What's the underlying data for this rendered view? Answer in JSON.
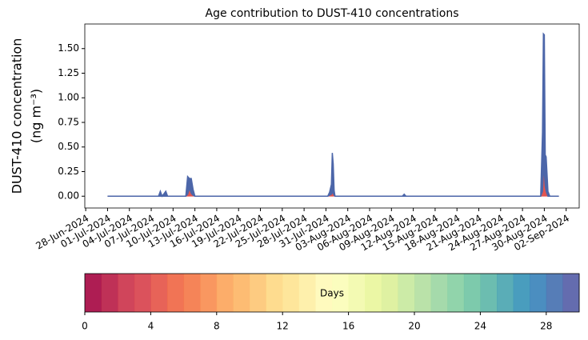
{
  "chart_data": {
    "type": "stacked-area",
    "title": "Age contribution to DUST-410 concentrations",
    "ylabel": [
      "DUST-410 concentration",
      "(ng m⁻³)"
    ],
    "x": [
      "2024-07-01T00:00",
      "2024-07-08T00:00",
      "2024-07-08T06:00",
      "2024-07-08T12:00",
      "2024-07-09T00:00",
      "2024-07-09T06:00",
      "2024-07-11T18:00",
      "2024-07-12T00:00",
      "2024-07-12T06:00",
      "2024-07-12T12:00",
      "2024-07-12T18:00",
      "2024-07-13T00:00",
      "2024-07-31T06:00",
      "2024-07-31T12:00",
      "2024-07-31T18:00",
      "2024-07-31T21:00",
      "2024-08-01T00:00",
      "2024-08-01T03:00",
      "2024-08-01T06:00",
      "2024-08-10T12:00",
      "2024-08-10T18:00",
      "2024-08-11T00:00",
      "2024-08-29T12:00",
      "2024-08-29T18:00",
      "2024-08-29T21:00",
      "2024-08-30T00:00",
      "2024-08-30T03:00",
      "2024-08-30T06:00",
      "2024-08-30T12:00",
      "2024-08-30T18:00",
      "2024-09-01T00:00"
    ],
    "series": [
      {
        "color": "#e25550",
        "values": [
          0,
          0,
          0,
          0,
          0,
          0,
          0,
          0.02,
          0.08,
          0.03,
          0.01,
          0,
          0,
          0.01,
          0.02,
          0.04,
          0.03,
          0.01,
          0,
          0,
          0,
          0,
          0,
          0.05,
          0.24,
          0.24,
          0.1,
          0.05,
          0,
          0,
          0
        ]
      },
      {
        "color": "#4c66a9",
        "values": [
          0,
          0,
          0.05,
          0,
          0.05,
          0,
          0,
          0.18,
          0.1,
          0.15,
          0.06,
          0,
          0,
          0.03,
          0.1,
          0.4,
          0.3,
          0.05,
          0,
          0,
          0.02,
          0,
          0,
          0.6,
          1.41,
          1.4,
          0.32,
          0.35,
          0.05,
          0,
          0
        ]
      }
    ],
    "xlim": [
      "2024-06-27T21:00",
      "2024-09-03T19:00"
    ],
    "xticks": [
      {
        "value": "2024-06-28",
        "label": "28-Jun-2024"
      },
      {
        "value": "2024-07-01",
        "label": "01-Jul-2024"
      },
      {
        "value": "2024-07-04",
        "label": "04-Jul-2024"
      },
      {
        "value": "2024-07-07",
        "label": "07-Jul-2024"
      },
      {
        "value": "2024-07-10",
        "label": "10-Jul-2024"
      },
      {
        "value": "2024-07-13",
        "label": "13-Jul-2024"
      },
      {
        "value": "2024-07-16",
        "label": "16-Jul-2024"
      },
      {
        "value": "2024-07-19",
        "label": "19-Jul-2024"
      },
      {
        "value": "2024-07-22",
        "label": "22-Jul-2024"
      },
      {
        "value": "2024-07-25",
        "label": "25-Jul-2024"
      },
      {
        "value": "2024-07-28",
        "label": "28-Jul-2024"
      },
      {
        "value": "2024-07-31",
        "label": "31-Jul-2024"
      },
      {
        "value": "2024-08-03",
        "label": "03-Aug-2024"
      },
      {
        "value": "2024-08-06",
        "label": "06-Aug-2024"
      },
      {
        "value": "2024-08-09",
        "label": "09-Aug-2024"
      },
      {
        "value": "2024-08-12",
        "label": "12-Aug-2024"
      },
      {
        "value": "2024-08-15",
        "label": "15-Aug-2024"
      },
      {
        "value": "2024-08-18",
        "label": "18-Aug-2024"
      },
      {
        "value": "2024-08-21",
        "label": "21-Aug-2024"
      },
      {
        "value": "2024-08-24",
        "label": "24-Aug-2024"
      },
      {
        "value": "2024-08-27",
        "label": "27-Aug-2024"
      },
      {
        "value": "2024-08-30",
        "label": "30-Aug-2024"
      },
      {
        "value": "2024-09-02",
        "label": "02-Sep-2024"
      }
    ],
    "ylim": [
      -0.12,
      1.75
    ],
    "yticks": [
      {
        "value": 0,
        "label": "0.00"
      },
      {
        "value": 0.25,
        "label": "0.25"
      },
      {
        "value": 0.5,
        "label": "0.50"
      },
      {
        "value": 0.75,
        "label": "0.75"
      },
      {
        "value": 1,
        "label": "1.00"
      },
      {
        "value": 1.25,
        "label": "1.25"
      },
      {
        "value": 1.5,
        "label": "1.50"
      }
    ],
    "colorbar": {
      "label": "Days",
      "lim": [
        0,
        30
      ],
      "ticks": [
        0,
        4,
        8,
        12,
        16,
        20,
        24,
        28
      ],
      "colors": [
        "#a70a44",
        "#ba2049",
        "#cc354d",
        "#d8434e",
        "#e5564a",
        "#f06846",
        "#f47a4a",
        "#f98e52",
        "#fca65d",
        "#fdb667",
        "#fdc776",
        "#fed985",
        "#fee492",
        "#feefa5",
        "#fffab8",
        "#fbfdb9",
        "#f2faac",
        "#e9f69d",
        "#dcf09a",
        "#c8e99f",
        "#b4e0a2",
        "#9dd7a4",
        "#88d0a4",
        "#72c6a5",
        "#5fb7a9",
        "#4ca6b1",
        "#3a95b9",
        "#3c84bb",
        "#4872b1",
        "#5760a8"
      ]
    }
  }
}
